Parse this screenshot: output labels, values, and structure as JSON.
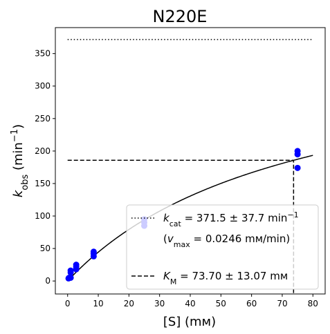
{
  "chart_data": {
    "type": "scatter",
    "title": "N220E",
    "xlabel": "[S] (mм)",
    "ylabel": {
      "base": "k",
      "sub": "obs",
      "unit_pre": " (min",
      "sup": "−1",
      "unit_post": ")"
    },
    "xlim": [
      -4,
      84
    ],
    "ylim": [
      -20,
      390
    ],
    "xticks": [
      0,
      10,
      20,
      30,
      40,
      50,
      60,
      70,
      80
    ],
    "yticks": [
      0,
      50,
      100,
      150,
      200,
      250,
      300,
      350
    ],
    "grid": false,
    "legend_position": "lower-right",
    "colors": {
      "points": "#0000ff",
      "fit": "#000000"
    },
    "points": [
      {
        "x": 0.3,
        "y": 4
      },
      {
        "x": 0.5,
        "y": 5
      },
      {
        "x": 1,
        "y": 5
      },
      {
        "x": 1,
        "y": 13
      },
      {
        "x": 1,
        "y": 16
      },
      {
        "x": 2.8,
        "y": 18
      },
      {
        "x": 2.8,
        "y": 22
      },
      {
        "x": 2.8,
        "y": 25
      },
      {
        "x": 8.5,
        "y": 38
      },
      {
        "x": 8.5,
        "y": 42
      },
      {
        "x": 8.5,
        "y": 45
      },
      {
        "x": 25,
        "y": 85
      },
      {
        "x": 25,
        "y": 90
      },
      {
        "x": 25,
        "y": 95
      },
      {
        "x": 75,
        "y": 174
      },
      {
        "x": 75,
        "y": 195
      },
      {
        "x": 75,
        "y": 200
      }
    ],
    "fit": {
      "model": "michaelis-menten",
      "kcat": 371.5,
      "KM": 73.7,
      "x_range": [
        0,
        80
      ]
    },
    "kcat_line": {
      "y": 371.5,
      "x_range": [
        0,
        80
      ]
    },
    "km_guide": {
      "x": 73.7,
      "y": 185.75,
      "x_start": 0
    },
    "legend": [
      {
        "style": "dotted",
        "symbol": "k",
        "sub": "cat",
        "text": " = 371.5 ± 37.7 min",
        "sup": "−1"
      },
      {
        "style": "none",
        "pre": "(",
        "symbol": "v",
        "sub": "max",
        "text": " = 0.0246 mм/min)"
      },
      {
        "style": "dashed",
        "symbol": "K",
        "sub": "M",
        "text": " = 73.70 ± 13.07 mм"
      }
    ]
  }
}
